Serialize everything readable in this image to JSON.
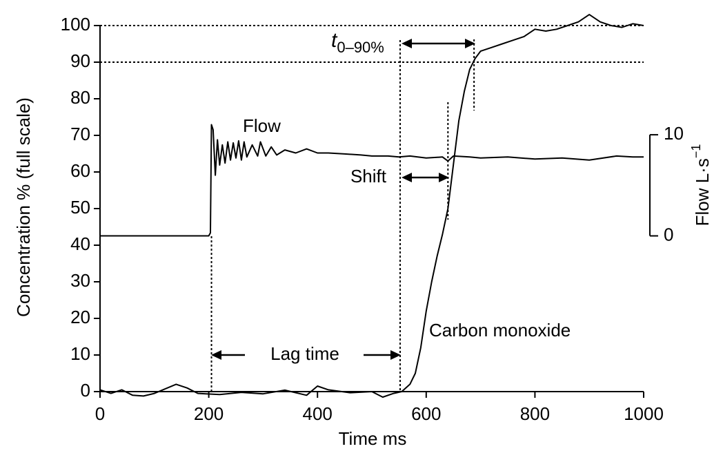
{
  "chart_data": {
    "type": "line",
    "xlabel": "Time ms",
    "ylabel": "Concentration % (full scale)",
    "y2label": {
      "text": "Flow L·s",
      "sup": "−1"
    },
    "xlim": [
      0,
      1000
    ],
    "xticks": [
      0,
      200,
      400,
      600,
      800,
      1000
    ],
    "ylim": [
      0,
      100
    ],
    "yticks": [
      0,
      10,
      20,
      30,
      40,
      50,
      60,
      70,
      80,
      90,
      100
    ],
    "y2lim": [
      -15.4,
      20.8
    ],
    "y2ticks": [
      0,
      10
    ],
    "hlines": [
      100,
      90
    ],
    "vlines": [
      205,
      552,
      640,
      688
    ],
    "annotations": {
      "flow": "Flow",
      "shift": "Shift",
      "lag": "Lag time",
      "co": "Carbon monoxide",
      "t": "t",
      "t_sub": "0–90%"
    },
    "series": [
      {
        "name": "Flow",
        "color": "#000000",
        "axis": "y2",
        "x": [
          0,
          100,
          200,
          203,
          205,
          208,
          212,
          216,
          220,
          225,
          230,
          235,
          240,
          245,
          250,
          255,
          260,
          265,
          270,
          280,
          290,
          295,
          305,
          315,
          325,
          340,
          360,
          380,
          400,
          420,
          450,
          480,
          500,
          530,
          550,
          570,
          600,
          630,
          640,
          650,
          680,
          700,
          750,
          800,
          850,
          900,
          950,
          980,
          1000
        ],
        "values": [
          0,
          0,
          0,
          0.3,
          11.0,
          10.5,
          6,
          9.5,
          7,
          9,
          7.2,
          9.3,
          7.5,
          9.2,
          7.7,
          9.4,
          7.5,
          9.3,
          7.8,
          9,
          7.9,
          9.3,
          7.9,
          8.8,
          8,
          8.5,
          8.2,
          8.6,
          8.2,
          8.2,
          8.1,
          8.0,
          7.9,
          7.9,
          7.8,
          7.9,
          7.7,
          7.8,
          7.4,
          7.9,
          7.8,
          7.7,
          7.8,
          7.6,
          7.7,
          7.5,
          7.9,
          7.8,
          7.8
        ]
      },
      {
        "name": "Carbon monoxide",
        "color": "#000000",
        "x": [
          0,
          20,
          40,
          60,
          80,
          100,
          140,
          160,
          180,
          220,
          260,
          300,
          340,
          380,
          400,
          420,
          460,
          500,
          520,
          540,
          555,
          570,
          580,
          590,
          600,
          610,
          620,
          630,
          640,
          650,
          660,
          670,
          680,
          690,
          700,
          720,
          740,
          760,
          780,
          800,
          820,
          840,
          860,
          880,
          900,
          920,
          940,
          960,
          980,
          1000
        ],
        "values": [
          0.5,
          -0.5,
          0.5,
          -1,
          -1.2,
          -0.5,
          2,
          1,
          -0.5,
          -0.8,
          -0.2,
          -0.6,
          0.4,
          -1,
          1.5,
          0.5,
          -0.3,
          0,
          -1.5,
          -0.5,
          0,
          2,
          5,
          12,
          22,
          30,
          37,
          43,
          50,
          62,
          74,
          82,
          88,
          91,
          93,
          94,
          95,
          96,
          97,
          99,
          98.5,
          99,
          100,
          101,
          103,
          101,
          100,
          99.5,
          100.5,
          100
        ]
      }
    ]
  }
}
